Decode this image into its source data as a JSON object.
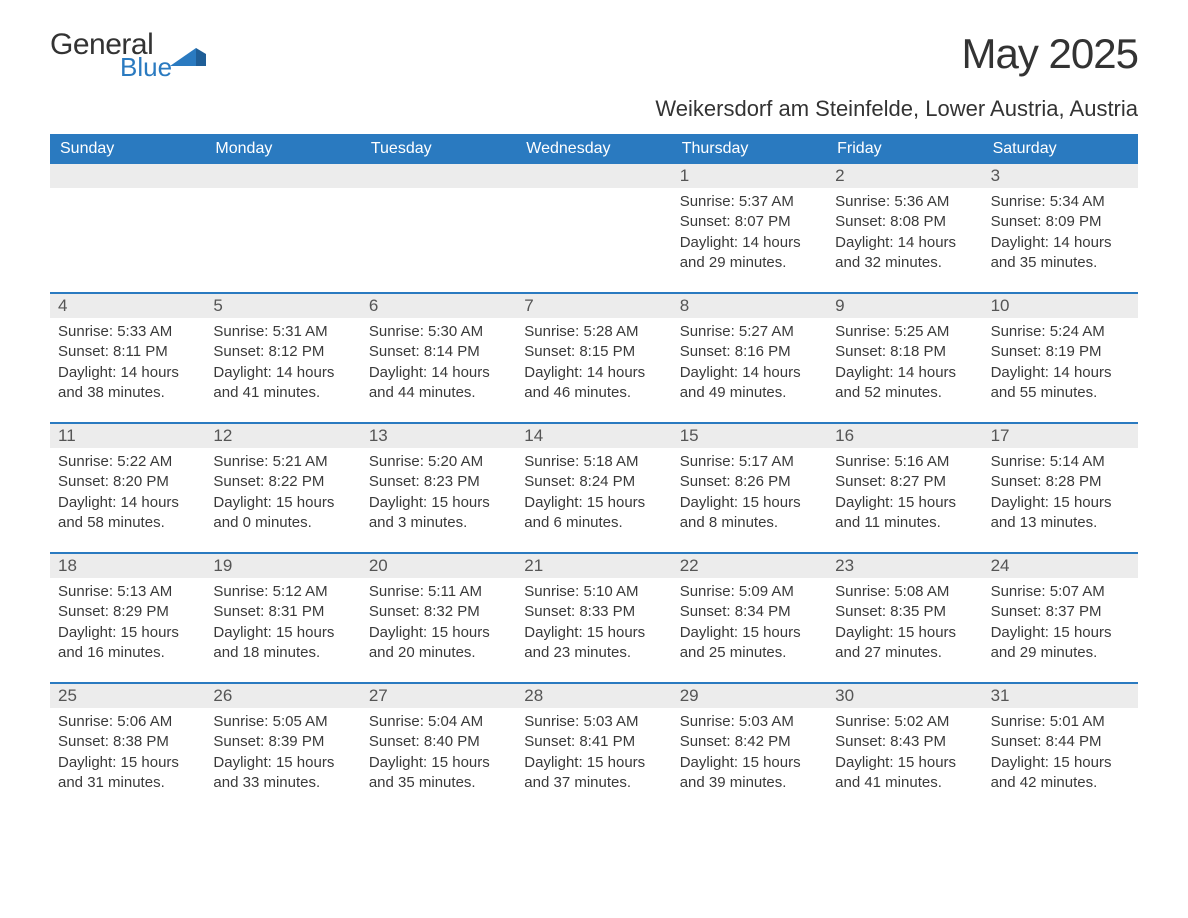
{
  "logo": {
    "general": "General",
    "blue": "Blue"
  },
  "title": "May 2025",
  "location": "Weikersdorf am Steinfelde, Lower Austria, Austria",
  "colors": {
    "accent": "#2a7ac0",
    "header_text": "#ffffff",
    "daynum_bg": "#ececec",
    "text": "#3a3a3a",
    "page_bg": "#ffffff"
  },
  "day_names": [
    "Sunday",
    "Monday",
    "Tuesday",
    "Wednesday",
    "Thursday",
    "Friday",
    "Saturday"
  ],
  "weeks": [
    [
      null,
      null,
      null,
      null,
      {
        "n": "1",
        "sunrise": "5:37 AM",
        "sunset": "8:07 PM",
        "daylight": "14 hours and 29 minutes."
      },
      {
        "n": "2",
        "sunrise": "5:36 AM",
        "sunset": "8:08 PM",
        "daylight": "14 hours and 32 minutes."
      },
      {
        "n": "3",
        "sunrise": "5:34 AM",
        "sunset": "8:09 PM",
        "daylight": "14 hours and 35 minutes."
      }
    ],
    [
      {
        "n": "4",
        "sunrise": "5:33 AM",
        "sunset": "8:11 PM",
        "daylight": "14 hours and 38 minutes."
      },
      {
        "n": "5",
        "sunrise": "5:31 AM",
        "sunset": "8:12 PM",
        "daylight": "14 hours and 41 minutes."
      },
      {
        "n": "6",
        "sunrise": "5:30 AM",
        "sunset": "8:14 PM",
        "daylight": "14 hours and 44 minutes."
      },
      {
        "n": "7",
        "sunrise": "5:28 AM",
        "sunset": "8:15 PM",
        "daylight": "14 hours and 46 minutes."
      },
      {
        "n": "8",
        "sunrise": "5:27 AM",
        "sunset": "8:16 PM",
        "daylight": "14 hours and 49 minutes."
      },
      {
        "n": "9",
        "sunrise": "5:25 AM",
        "sunset": "8:18 PM",
        "daylight": "14 hours and 52 minutes."
      },
      {
        "n": "10",
        "sunrise": "5:24 AM",
        "sunset": "8:19 PM",
        "daylight": "14 hours and 55 minutes."
      }
    ],
    [
      {
        "n": "11",
        "sunrise": "5:22 AM",
        "sunset": "8:20 PM",
        "daylight": "14 hours and 58 minutes."
      },
      {
        "n": "12",
        "sunrise": "5:21 AM",
        "sunset": "8:22 PM",
        "daylight": "15 hours and 0 minutes."
      },
      {
        "n": "13",
        "sunrise": "5:20 AM",
        "sunset": "8:23 PM",
        "daylight": "15 hours and 3 minutes."
      },
      {
        "n": "14",
        "sunrise": "5:18 AM",
        "sunset": "8:24 PM",
        "daylight": "15 hours and 6 minutes."
      },
      {
        "n": "15",
        "sunrise": "5:17 AM",
        "sunset": "8:26 PM",
        "daylight": "15 hours and 8 minutes."
      },
      {
        "n": "16",
        "sunrise": "5:16 AM",
        "sunset": "8:27 PM",
        "daylight": "15 hours and 11 minutes."
      },
      {
        "n": "17",
        "sunrise": "5:14 AM",
        "sunset": "8:28 PM",
        "daylight": "15 hours and 13 minutes."
      }
    ],
    [
      {
        "n": "18",
        "sunrise": "5:13 AM",
        "sunset": "8:29 PM",
        "daylight": "15 hours and 16 minutes."
      },
      {
        "n": "19",
        "sunrise": "5:12 AM",
        "sunset": "8:31 PM",
        "daylight": "15 hours and 18 minutes."
      },
      {
        "n": "20",
        "sunrise": "5:11 AM",
        "sunset": "8:32 PM",
        "daylight": "15 hours and 20 minutes."
      },
      {
        "n": "21",
        "sunrise": "5:10 AM",
        "sunset": "8:33 PM",
        "daylight": "15 hours and 23 minutes."
      },
      {
        "n": "22",
        "sunrise": "5:09 AM",
        "sunset": "8:34 PM",
        "daylight": "15 hours and 25 minutes."
      },
      {
        "n": "23",
        "sunrise": "5:08 AM",
        "sunset": "8:35 PM",
        "daylight": "15 hours and 27 minutes."
      },
      {
        "n": "24",
        "sunrise": "5:07 AM",
        "sunset": "8:37 PM",
        "daylight": "15 hours and 29 minutes."
      }
    ],
    [
      {
        "n": "25",
        "sunrise": "5:06 AM",
        "sunset": "8:38 PM",
        "daylight": "15 hours and 31 minutes."
      },
      {
        "n": "26",
        "sunrise": "5:05 AM",
        "sunset": "8:39 PM",
        "daylight": "15 hours and 33 minutes."
      },
      {
        "n": "27",
        "sunrise": "5:04 AM",
        "sunset": "8:40 PM",
        "daylight": "15 hours and 35 minutes."
      },
      {
        "n": "28",
        "sunrise": "5:03 AM",
        "sunset": "8:41 PM",
        "daylight": "15 hours and 37 minutes."
      },
      {
        "n": "29",
        "sunrise": "5:03 AM",
        "sunset": "8:42 PM",
        "daylight": "15 hours and 39 minutes."
      },
      {
        "n": "30",
        "sunrise": "5:02 AM",
        "sunset": "8:43 PM",
        "daylight": "15 hours and 41 minutes."
      },
      {
        "n": "31",
        "sunrise": "5:01 AM",
        "sunset": "8:44 PM",
        "daylight": "15 hours and 42 minutes."
      }
    ]
  ],
  "labels": {
    "sunrise": "Sunrise:",
    "sunset": "Sunset:",
    "daylight": "Daylight:"
  }
}
